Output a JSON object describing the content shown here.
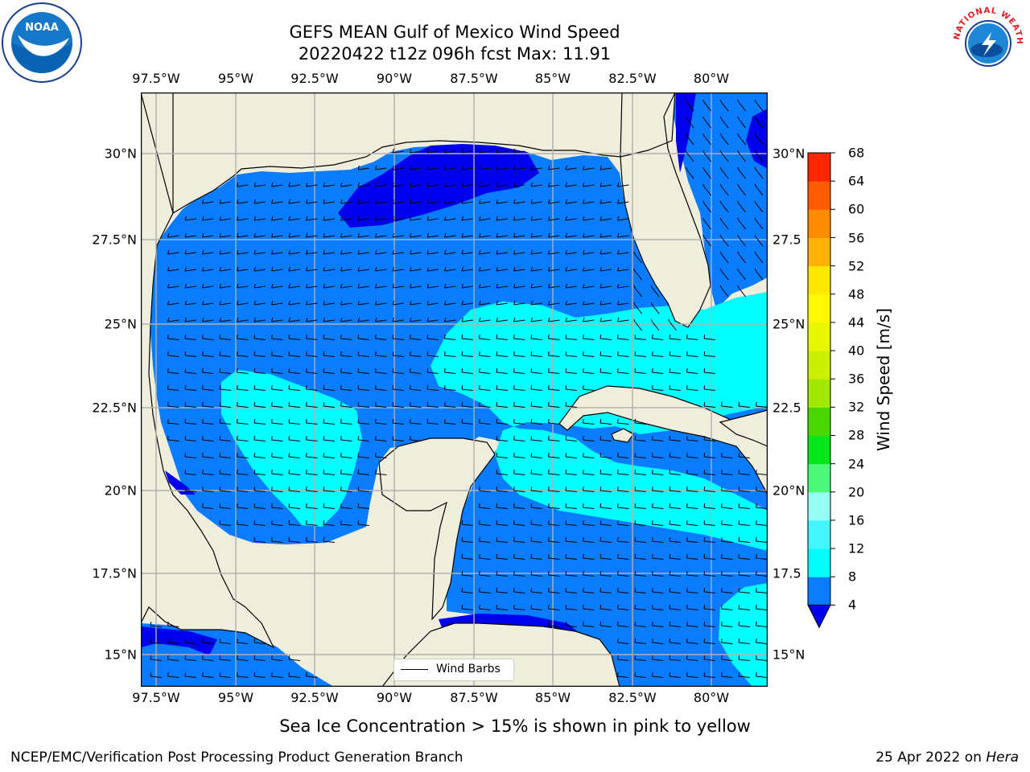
{
  "title": {
    "line1": "GEFS MEAN Gulf of Mexico Wind Speed",
    "line2": "20220422 t12z 096h fcst   Max: 11.91"
  },
  "map": {
    "lon_ticks": [
      "97.5°W",
      "95°W",
      "92.5°W",
      "90°W",
      "87.5°W",
      "85°W",
      "82.5°W",
      "80°W"
    ],
    "lat_ticks_left": [
      "30°N",
      "27.5°N",
      "25°N",
      "22.5°N",
      "20°N",
      "17.5°N",
      "15°N"
    ],
    "lat_ticks_right": [
      "30°N",
      "27.5",
      "25°N",
      "22.5",
      "20°N",
      "17.5",
      "15°N"
    ],
    "land_color": "#efeedc",
    "grid_color": "#b0b0b0",
    "legend_label": "Wind Barbs"
  },
  "colorbar": {
    "title": "Wind Speed [m/s]",
    "levels": [
      "4",
      "8",
      "12",
      "16",
      "20",
      "24",
      "28",
      "32",
      "36",
      "40",
      "44",
      "48",
      "52",
      "56",
      "60",
      "64",
      "68"
    ],
    "colors": [
      "#0a7cff",
      "#00ffff",
      "#44f4ff",
      "#96fff4",
      "#4cf878",
      "#00e81a",
      "#4ad800",
      "#a2e800",
      "#ccf000",
      "#e8f800",
      "#fff800",
      "#ffe800",
      "#ffb200",
      "#ff8c00",
      "#ff5c00",
      "#ff2600"
    ],
    "under_color": "#0000ee"
  },
  "note": "Sea Ice Concentration > 15% is shown in pink to yellow",
  "footer": {
    "left": "NCEP/EMC/Verification Post Processing Product Generation Branch",
    "right_prefix": "25 Apr 2022 on ",
    "right_host": "Hera"
  },
  "logos": {
    "noaa_text": "NOAA",
    "nws_text": "NATIONAL WEATHER SERVICE"
  }
}
